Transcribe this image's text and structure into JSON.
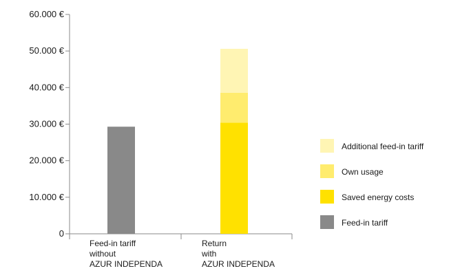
{
  "chart_data": {
    "type": "bar",
    "stacked": true,
    "categories": [
      [
        "Feed-in tariff",
        "without",
        "AZUR INDEPENDA"
      ],
      [
        "Return",
        "with",
        "AZUR INDEPENDA"
      ]
    ],
    "yticks": [
      {
        "value": 0,
        "label": "0"
      },
      {
        "value": 10000,
        "label": "10.000 €"
      },
      {
        "value": 20000,
        "label": "20.000 €"
      },
      {
        "value": 30000,
        "label": "30.000 €"
      },
      {
        "value": 40000,
        "label": "40.000 €"
      },
      {
        "value": 50000,
        "label": "50.000 €"
      },
      {
        "value": 60000,
        "label": "60.000 €"
      }
    ],
    "ylim": [
      0,
      60000
    ],
    "grid": false,
    "legend_position": "right",
    "series": [
      {
        "name": "Feed-in tariff",
        "color": "#898989",
        "values": [
          29300,
          0
        ]
      },
      {
        "name": "Saved energy costs",
        "color": "#ffe100",
        "values": [
          0,
          30400
        ]
      },
      {
        "name": "Own usage",
        "color": "#ffec6e",
        "values": [
          0,
          8200
        ]
      },
      {
        "name": "Additional feed-in tariff",
        "color": "#fff5b4",
        "values": [
          0,
          12000
        ]
      }
    ],
    "legend_order": [
      "Additional feed-in tariff",
      "Own usage",
      "Saved energy costs",
      "Feed-in tariff"
    ]
  }
}
